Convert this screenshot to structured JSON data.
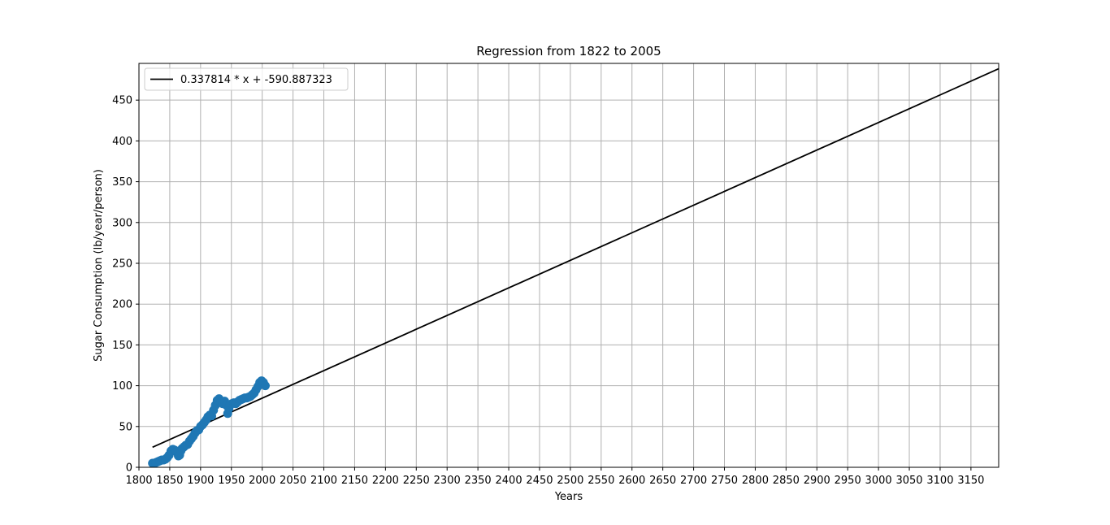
{
  "chart_data": {
    "type": "scatter",
    "title": "Regression from 1822 to 2005",
    "xlabel": "Years",
    "ylabel": "Sugar Consumption (lb/year/person)",
    "xlim": [
      1800,
      3195
    ],
    "ylim": [
      0,
      495
    ],
    "xticks": [
      1800,
      1850,
      1900,
      1950,
      2000,
      2050,
      2100,
      2150,
      2200,
      2250,
      2300,
      2350,
      2400,
      2450,
      2500,
      2550,
      2600,
      2650,
      2700,
      2750,
      2800,
      2850,
      2900,
      2950,
      3000,
      3050,
      3100,
      3150
    ],
    "yticks": [
      0,
      50,
      100,
      150,
      200,
      250,
      300,
      350,
      400,
      450
    ],
    "grid": true,
    "legend_position": "top-left",
    "colors": {
      "scatter": "#1f77b4",
      "line": "#000000",
      "grid": "#b0b0b0"
    },
    "regression": {
      "label": "0.337814 * x + -590.887323",
      "slope": 0.337814,
      "intercept": -590.887323,
      "x_start": 1822,
      "x_end": 3195
    },
    "series": [
      {
        "x": [
          1822,
          1825,
          1828,
          1831,
          1834,
          1837,
          1840,
          1843,
          1846,
          1849,
          1852,
          1855,
          1858,
          1861,
          1864,
          1866,
          1868,
          1870,
          1873,
          1876,
          1879,
          1882,
          1885,
          1888,
          1891,
          1894,
          1897,
          1900,
          1903,
          1906,
          1909,
          1912,
          1915,
          1918,
          1921,
          1924,
          1927,
          1930,
          1933,
          1936,
          1939,
          1942,
          1944,
          1946,
          1948,
          1951,
          1954,
          1957,
          1960,
          1963,
          1966,
          1969,
          1972,
          1975,
          1978,
          1981,
          1984,
          1987,
          1990,
          1993,
          1996,
          1999,
          2002,
          2005
        ],
        "y": [
          5,
          5,
          6,
          7,
          8,
          9,
          9,
          10,
          12,
          15,
          20,
          22,
          21,
          19,
          14,
          15,
          20,
          23,
          25,
          27,
          28,
          32,
          35,
          38,
          42,
          45,
          46,
          50,
          52,
          55,
          58,
          62,
          64,
          63,
          70,
          76,
          82,
          84,
          80,
          78,
          81,
          76,
          66,
          72,
          77,
          78,
          79,
          78,
          80,
          82,
          83,
          84,
          85,
          85,
          86,
          87,
          89,
          91,
          95,
          99,
          104,
          106,
          104,
          100
        ]
      }
    ]
  }
}
